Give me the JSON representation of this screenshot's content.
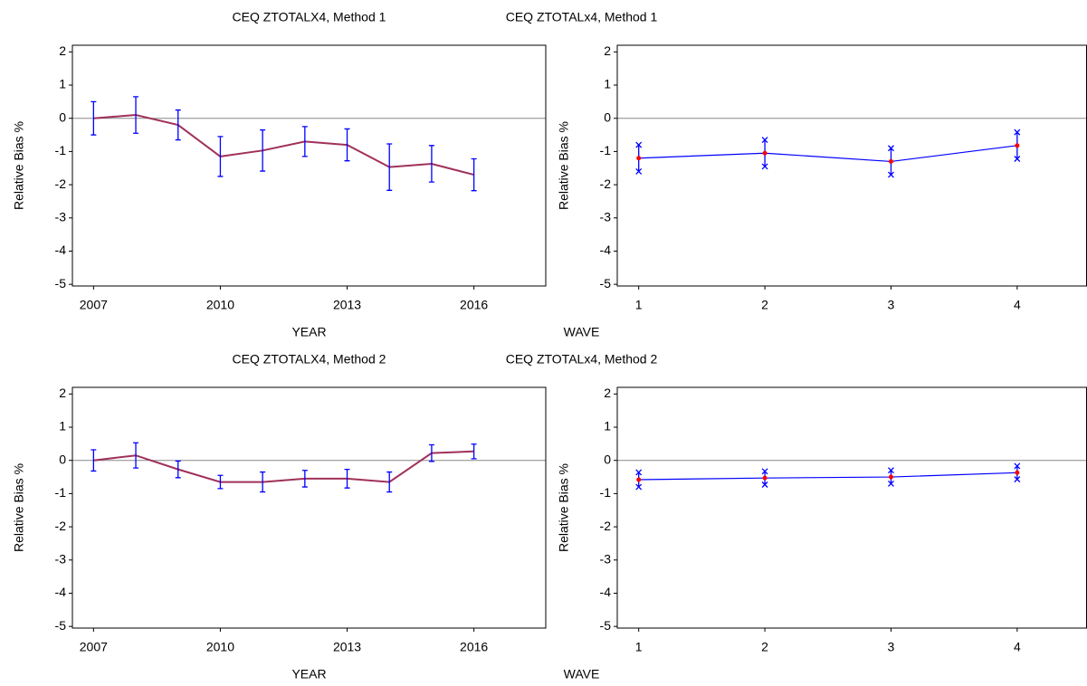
{
  "chart_data": [
    {
      "type": "line",
      "title": "CEQ ZTOTALX4, Method 1",
      "x_label": "YEAR",
      "y_label": "Relative Bias %",
      "x": [
        2007,
        2008,
        2009,
        2010,
        2011,
        2012,
        2013,
        2014,
        2015,
        2016
      ],
      "values": [
        0,
        0.1,
        -0.2,
        -1.15,
        -0.97,
        -0.7,
        -0.8,
        -1.47,
        -1.37,
        -1.7
      ],
      "errors": [
        0.5,
        0.55,
        0.45,
        0.6,
        0.62,
        0.45,
        0.48,
        0.7,
        0.55,
        0.48
      ],
      "color": "#a0305a",
      "error_color": "#0000ff",
      "markers": false,
      "xlim": [
        2006.5,
        2017.7
      ],
      "xticks": [
        2007,
        2010,
        2013,
        2016
      ],
      "ylim": [
        -5.05,
        2.2
      ],
      "yticks": [
        2,
        1,
        0,
        -1,
        -2,
        -3,
        -4,
        -5
      ],
      "hline": 0
    },
    {
      "type": "line",
      "title": "CEQ ZTOTALx4, Method 1",
      "x_label": "WAVE",
      "y_label": "Relative Bias %",
      "x": [
        1,
        2,
        3,
        4
      ],
      "values": [
        -1.2,
        -1.05,
        -1.3,
        -0.82
      ],
      "errors": [
        0.4,
        0.4,
        0.4,
        0.4
      ],
      "color": "#0000ff",
      "error_color": "#0000ff",
      "markers": true,
      "marker_color": "#ff0000",
      "xlim": [
        0.83,
        4.55
      ],
      "xticks": [
        1,
        2,
        3,
        4
      ],
      "ylim": [
        -5.05,
        2.2
      ],
      "yticks": [
        2,
        1,
        0,
        -1,
        -2,
        -3,
        -4,
        -5
      ],
      "hline": 0
    },
    {
      "type": "line",
      "title": "CEQ ZTOTALX4, Method 2",
      "x_label": "YEAR",
      "y_label": "Relative Bias %",
      "x": [
        2007,
        2008,
        2009,
        2010,
        2011,
        2012,
        2013,
        2014,
        2015,
        2016
      ],
      "values": [
        0,
        0.15,
        -0.27,
        -0.65,
        -0.65,
        -0.55,
        -0.55,
        -0.65,
        0.22,
        0.27
      ],
      "errors": [
        0.32,
        0.38,
        0.25,
        0.2,
        0.3,
        0.25,
        0.28,
        0.3,
        0.25,
        0.22
      ],
      "color": "#a0305a",
      "error_color": "#0000ff",
      "markers": false,
      "xlim": [
        2006.5,
        2017.7
      ],
      "xticks": [
        2007,
        2010,
        2013,
        2016
      ],
      "ylim": [
        -5.05,
        2.2
      ],
      "yticks": [
        2,
        1,
        0,
        -1,
        -2,
        -3,
        -4,
        -5
      ],
      "hline": 0
    },
    {
      "type": "line",
      "title": "CEQ ZTOTALx4, Method 2",
      "x_label": "WAVE",
      "y_label": "Relative Bias %",
      "x": [
        1,
        2,
        3,
        4
      ],
      "values": [
        -0.58,
        -0.53,
        -0.5,
        -0.37
      ],
      "errors": [
        0.22,
        0.2,
        0.2,
        0.2
      ],
      "color": "#0000ff",
      "error_color": "#0000ff",
      "markers": true,
      "marker_color": "#ff0000",
      "xlim": [
        0.83,
        4.55
      ],
      "xticks": [
        1,
        2,
        3,
        4
      ],
      "ylim": [
        -5.05,
        2.2
      ],
      "yticks": [
        2,
        1,
        0,
        -1,
        -2,
        -3,
        -4,
        -5
      ],
      "hline": 0
    }
  ]
}
